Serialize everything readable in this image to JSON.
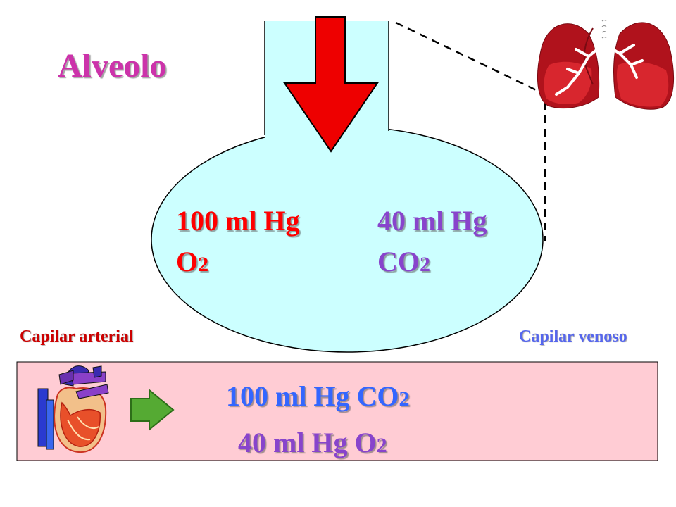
{
  "title": "Alveolo",
  "alveolus": {
    "left_value": "100 ml Hg",
    "left_gas": "O",
    "left_gas_sub": "2",
    "right_value": "40 ml Hg",
    "right_gas": "CO",
    "right_gas_sub": "2"
  },
  "capillary": {
    "arterial_label": "Capilar arterial",
    "venous_label": "Capilar venoso",
    "line1_value": "100 ml Hg CO",
    "line1_sub": "2",
    "line2_value": "40 ml Hg O",
    "line2_sub": "2"
  },
  "colors": {
    "title": "#cc33aa",
    "alveolus_fill": "#ccffff",
    "value_red": "#ff0000",
    "value_purple": "#8844cc",
    "capillary_blue": "#3366ff",
    "capillary_fill": "#ffccd4",
    "arterial_label": "#cc0000",
    "venous_label": "#5566ee",
    "arrow_red": "#ee0000",
    "arrow_green": "#55aa33"
  },
  "icons": [
    "lungs-icon",
    "heart-icon",
    "inflow-arrow-icon",
    "flow-arrow-icon"
  ]
}
